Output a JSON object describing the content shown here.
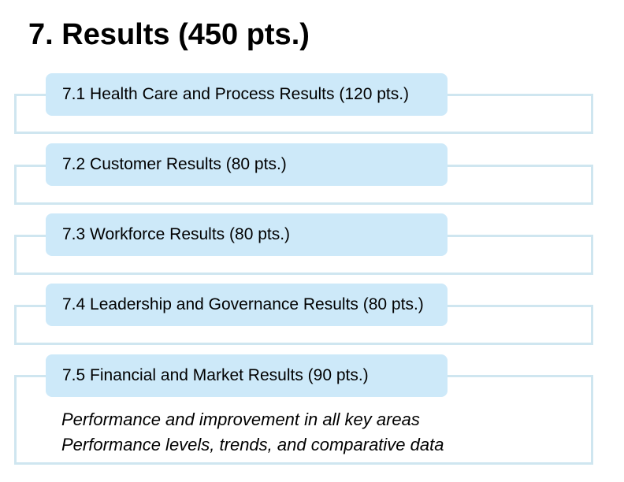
{
  "title": "7. Results (450 pts.)",
  "categories": [
    {
      "label": "7.1  Health Care and Process Results (120 pts.)"
    },
    {
      "label": "7.2  Customer Results (80 pts.)"
    },
    {
      "label": "7.3  Workforce Results (80 pts.)"
    },
    {
      "label": "7.4  Leadership and Governance Results (80 pts.)"
    },
    {
      "label": "7.5  Financial and Market Results (90 pts.)"
    }
  ],
  "notes": [
    "Performance and improvement in all key areas",
    "Performance levels, trends, and comparative data"
  ]
}
